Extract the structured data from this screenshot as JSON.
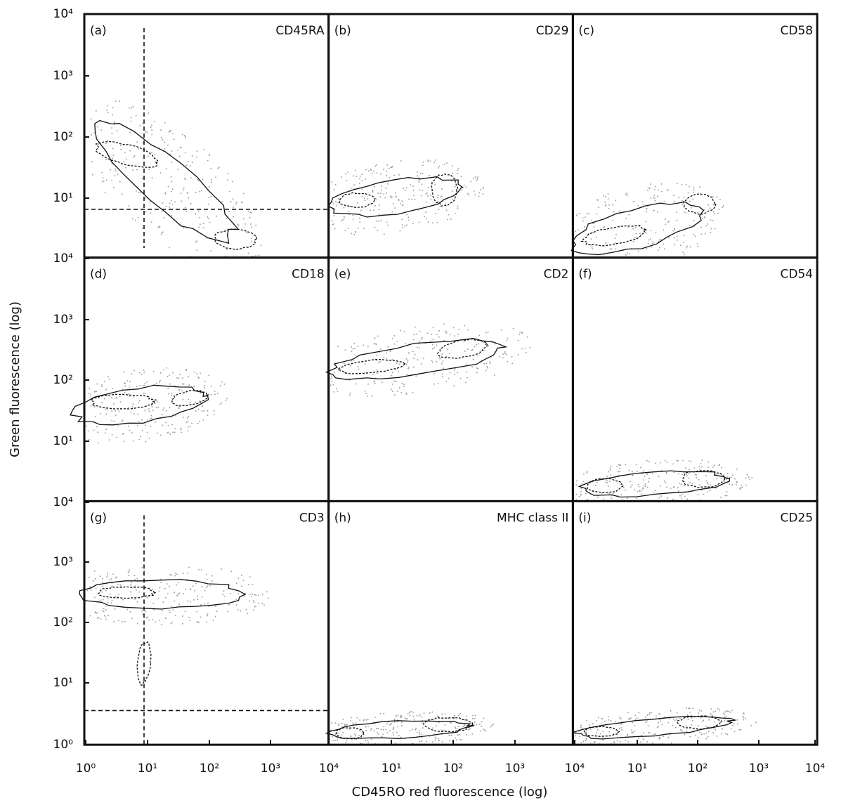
{
  "figure": {
    "y_axis_label": "Green fluorescence (log)",
    "x_axis_label": "CD45RO red fluorescence (log)",
    "y_tick_labels": [
      "10⁴",
      "10³",
      "10²",
      "10¹",
      "10⁴",
      "10³",
      "10²",
      "10¹",
      "10⁴",
      "10³",
      "10²",
      "10¹",
      "10⁰"
    ],
    "x_tick_labels": [
      "10⁰",
      "10¹",
      "10²",
      "10³",
      "10⁴",
      "10¹",
      "10²",
      "10³",
      "10⁴",
      "10¹",
      "10²",
      "10³",
      "10⁴"
    ],
    "panels": [
      {
        "label": "(a)",
        "marker": "CD45RA"
      },
      {
        "label": "(b)",
        "marker": "CD29"
      },
      {
        "label": "(c)",
        "marker": "CD58"
      },
      {
        "label": "(d)",
        "marker": "CD18"
      },
      {
        "label": "(e)",
        "marker": "CD2"
      },
      {
        "label": "(f)",
        "marker": "CD54"
      },
      {
        "label": "(g)",
        "marker": "CD3"
      },
      {
        "label": "(h)",
        "marker": "MHC class II"
      },
      {
        "label": "(i)",
        "marker": "CD25"
      }
    ]
  }
}
